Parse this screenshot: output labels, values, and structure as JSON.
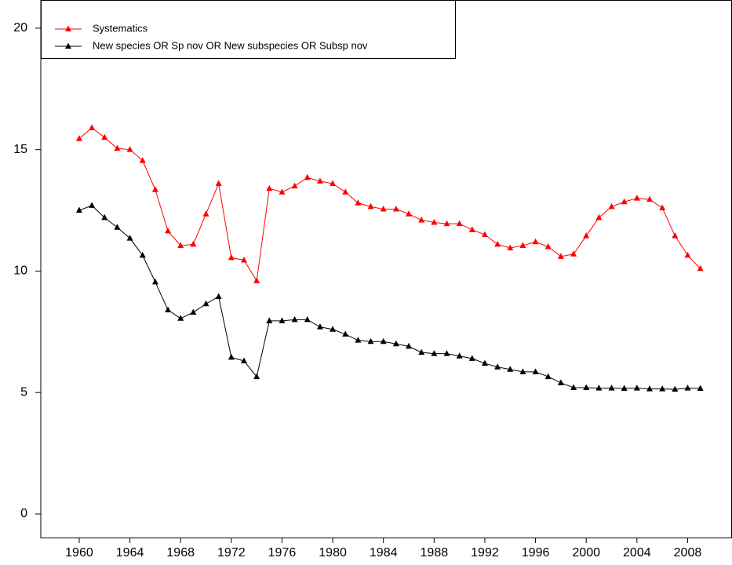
{
  "chart_data": {
    "type": "line",
    "x": [
      1960,
      1961,
      1962,
      1963,
      1964,
      1965,
      1966,
      1967,
      1968,
      1969,
      1970,
      1971,
      1972,
      1973,
      1974,
      1975,
      1976,
      1977,
      1978,
      1979,
      1980,
      1981,
      1982,
      1983,
      1984,
      1985,
      1986,
      1987,
      1988,
      1989,
      1990,
      1991,
      1992,
      1993,
      1994,
      1995,
      1996,
      1997,
      1998,
      1999,
      2000,
      2001,
      2002,
      2003,
      2004,
      2005,
      2006,
      2007,
      2008,
      2009
    ],
    "series": [
      {
        "name": "Systematics",
        "color": "#ff0000",
        "values": [
          15.45,
          15.9,
          15.5,
          15.05,
          15.0,
          14.55,
          13.35,
          11.65,
          11.05,
          11.1,
          12.35,
          13.6,
          10.55,
          10.45,
          9.6,
          13.4,
          13.25,
          13.5,
          13.85,
          13.7,
          13.6,
          13.25,
          12.8,
          12.65,
          12.55,
          12.55,
          12.35,
          12.1,
          12.0,
          11.95,
          11.95,
          11.7,
          11.5,
          11.1,
          10.95,
          11.05,
          11.2,
          11.0,
          10.6,
          10.7,
          11.45,
          12.2,
          12.65,
          12.85,
          13.0,
          12.95,
          12.6,
          11.45,
          10.65,
          10.1
        ]
      },
      {
        "name": "New species OR Sp nov OR New subspecies OR Subsp nov",
        "color": "#000000",
        "values": [
          12.5,
          12.7,
          12.2,
          11.8,
          11.35,
          10.65,
          9.55,
          8.4,
          8.05,
          8.3,
          8.65,
          8.95,
          6.45,
          6.3,
          5.65,
          7.95,
          7.95,
          8.0,
          8.0,
          7.7,
          7.6,
          7.4,
          7.15,
          7.1,
          7.1,
          7.0,
          6.9,
          6.65,
          6.6,
          6.6,
          6.5,
          6.4,
          6.2,
          6.05,
          5.95,
          5.85,
          5.85,
          5.65,
          5.4,
          5.2,
          5.2,
          5.18,
          5.18,
          5.17,
          5.18,
          5.15,
          5.15,
          5.13,
          5.18,
          5.17
        ]
      }
    ],
    "xlim": [
      1956.97,
      2011.5
    ],
    "xticks": [
      1960,
      1964,
      1968,
      1972,
      1976,
      1980,
      1984,
      1988,
      1992,
      1996,
      2000,
      2004,
      2008
    ],
    "ylim": [
      -0.97,
      21.16
    ],
    "yticks": [
      0,
      5,
      10,
      15,
      20
    ],
    "grid": false,
    "legend": "top-left"
  }
}
